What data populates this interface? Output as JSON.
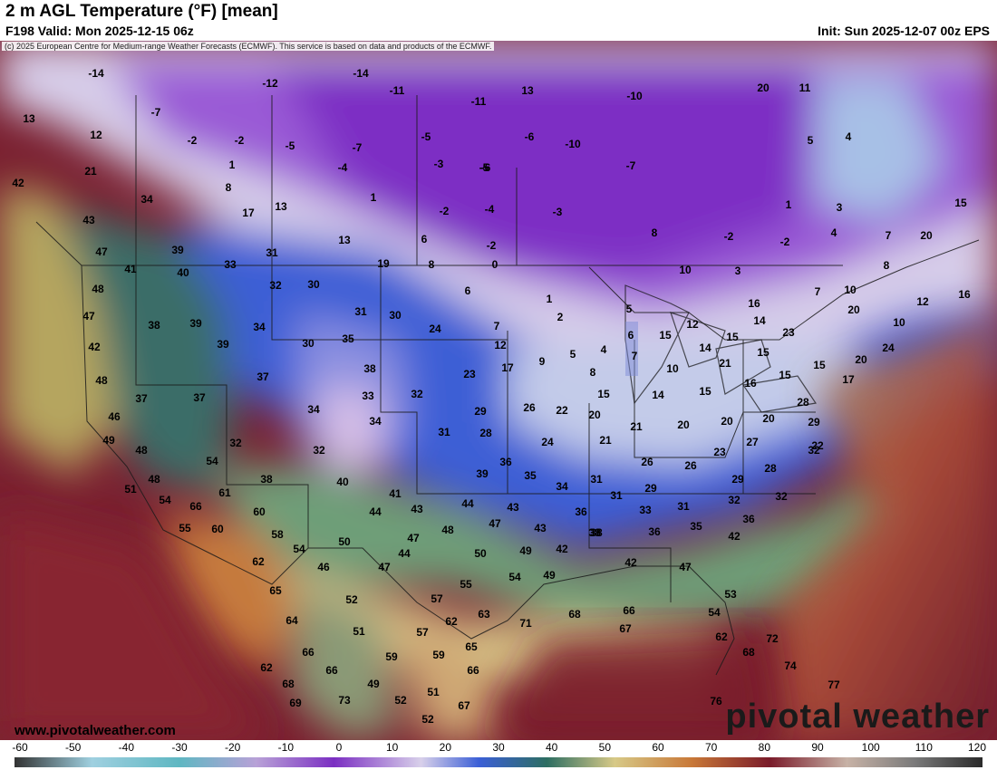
{
  "header": {
    "title": "2 m AGL Temperature (°F) [mean]",
    "valid": "F198 Valid: Mon 2025-12-15 06z",
    "init": "Init: Sun 2025-12-07 00z EPS"
  },
  "copyright": "(c) 2025 European Centre for Medium-range Weather Forecasts (ECMWF). This service is based on data and products of the ECMWF.",
  "website": "www.pivotalweather.com",
  "brand": "pivotal weather",
  "colors": {
    "frigid": "#7a2ab5",
    "cold": "#3f5fd6",
    "mild": "#2f6f62",
    "warm": "#c97a38",
    "hot": "#7a1c28"
  },
  "scale": {
    "ticks": [
      "-60",
      "-50",
      "-40",
      "-30",
      "-20",
      "-10",
      "0",
      "10",
      "20",
      "30",
      "40",
      "50",
      "60",
      "70",
      "80",
      "90",
      "100",
      "110",
      "120"
    ]
  },
  "map_values": [
    {
      "t": "-14"
    },
    {
      "t": "-12"
    },
    {
      "t": "-14"
    },
    {
      "t": "-11"
    },
    {
      "t": "13"
    },
    {
      "t": "-11"
    },
    {
      "t": "-10"
    },
    {
      "t": "20"
    },
    {
      "t": "11"
    },
    {
      "t": "13"
    },
    {
      "t": "-7"
    },
    {
      "t": "12"
    },
    {
      "t": "-2"
    },
    {
      "t": "-2"
    },
    {
      "t": "-5"
    },
    {
      "t": "-7"
    },
    {
      "t": "-5"
    },
    {
      "t": "-6"
    },
    {
      "t": "-10"
    },
    {
      "t": "-5"
    },
    {
      "t": "5"
    },
    {
      "t": "4"
    },
    {
      "t": "21"
    },
    {
      "t": "1"
    },
    {
      "t": "-4"
    },
    {
      "t": "-7"
    },
    {
      "t": "-3"
    },
    {
      "t": "-6"
    },
    {
      "t": "42"
    },
    {
      "t": "8"
    },
    {
      "t": "1"
    },
    {
      "t": "-2"
    },
    {
      "t": "-4"
    },
    {
      "t": "-3"
    },
    {
      "t": "1"
    },
    {
      "t": "3"
    },
    {
      "t": "15"
    },
    {
      "t": "34"
    },
    {
      "t": "17"
    },
    {
      "t": "13"
    },
    {
      "t": "43"
    },
    {
      "t": "-2"
    },
    {
      "t": "20"
    },
    {
      "t": "47"
    },
    {
      "t": "39"
    },
    {
      "t": "31"
    },
    {
      "t": "13"
    },
    {
      "t": "6"
    },
    {
      "t": "-2"
    },
    {
      "t": "8"
    },
    {
      "t": "-2"
    },
    {
      "t": "4"
    },
    {
      "t": "7"
    },
    {
      "t": "41"
    },
    {
      "t": "40"
    },
    {
      "t": "33"
    },
    {
      "t": "19"
    },
    {
      "t": "8"
    },
    {
      "t": "0"
    },
    {
      "t": "10"
    },
    {
      "t": "3"
    },
    {
      "t": "8"
    },
    {
      "t": "48"
    },
    {
      "t": "32"
    },
    {
      "t": "30"
    },
    {
      "t": "6"
    },
    {
      "t": "1"
    },
    {
      "t": "16"
    },
    {
      "t": "7"
    },
    {
      "t": "10"
    },
    {
      "t": "12"
    },
    {
      "t": "16"
    },
    {
      "t": "47"
    },
    {
      "t": "38"
    },
    {
      "t": "39"
    },
    {
      "t": "34"
    },
    {
      "t": "31"
    },
    {
      "t": "30"
    },
    {
      "t": "2"
    },
    {
      "t": "5"
    },
    {
      "t": "12"
    },
    {
      "t": "14"
    },
    {
      "t": "20"
    },
    {
      "t": "10"
    },
    {
      "t": "24"
    },
    {
      "t": "7"
    },
    {
      "t": "6"
    },
    {
      "t": "15"
    },
    {
      "t": "23"
    },
    {
      "t": "42"
    },
    {
      "t": "30"
    },
    {
      "t": "35"
    },
    {
      "t": "39"
    },
    {
      "t": "12"
    },
    {
      "t": "4"
    },
    {
      "t": "14"
    },
    {
      "t": "15"
    },
    {
      "t": "15"
    },
    {
      "t": "48"
    },
    {
      "t": "37"
    },
    {
      "t": "38"
    },
    {
      "t": "23"
    },
    {
      "t": "17"
    },
    {
      "t": "9"
    },
    {
      "t": "5"
    },
    {
      "t": "8"
    },
    {
      "t": "7"
    },
    {
      "t": "10"
    },
    {
      "t": "21"
    },
    {
      "t": "16"
    },
    {
      "t": "15"
    },
    {
      "t": "15"
    },
    {
      "t": "24"
    },
    {
      "t": "20"
    },
    {
      "t": "37"
    },
    {
      "t": "37"
    },
    {
      "t": "33"
    },
    {
      "t": "32"
    },
    {
      "t": "15"
    },
    {
      "t": "14"
    },
    {
      "t": "15"
    },
    {
      "t": "17"
    },
    {
      "t": "46"
    },
    {
      "t": "34"
    },
    {
      "t": "34"
    },
    {
      "t": "29"
    },
    {
      "t": "26"
    },
    {
      "t": "22"
    },
    {
      "t": "20"
    },
    {
      "t": "21"
    },
    {
      "t": "20"
    },
    {
      "t": "20"
    },
    {
      "t": "20"
    },
    {
      "t": "28"
    },
    {
      "t": "29"
    },
    {
      "t": "49"
    },
    {
      "t": "48"
    },
    {
      "t": "32"
    },
    {
      "t": "31"
    },
    {
      "t": "28"
    },
    {
      "t": "24"
    },
    {
      "t": "21"
    },
    {
      "t": "27"
    },
    {
      "t": "22"
    },
    {
      "t": "48"
    },
    {
      "t": "32"
    },
    {
      "t": "23"
    },
    {
      "t": "32"
    },
    {
      "t": "54"
    },
    {
      "t": "38"
    },
    {
      "t": "40"
    },
    {
      "t": "39"
    },
    {
      "t": "36"
    },
    {
      "t": "26"
    },
    {
      "t": "26"
    },
    {
      "t": "28"
    },
    {
      "t": "51"
    },
    {
      "t": "61"
    },
    {
      "t": "41"
    },
    {
      "t": "35"
    },
    {
      "t": "31"
    },
    {
      "t": "29"
    },
    {
      "t": "29"
    },
    {
      "t": "54"
    },
    {
      "t": "66"
    },
    {
      "t": "60"
    },
    {
      "t": "44"
    },
    {
      "t": "43"
    },
    {
      "t": "44"
    },
    {
      "t": "43"
    },
    {
      "t": "34"
    },
    {
      "t": "31"
    },
    {
      "t": "33"
    },
    {
      "t": "31"
    },
    {
      "t": "32"
    },
    {
      "t": "32"
    },
    {
      "t": "55"
    },
    {
      "t": "60"
    },
    {
      "t": "58"
    },
    {
      "t": "47"
    },
    {
      "t": "48"
    },
    {
      "t": "47"
    },
    {
      "t": "43"
    },
    {
      "t": "36"
    },
    {
      "t": "38"
    },
    {
      "t": "36"
    },
    {
      "t": "35"
    },
    {
      "t": "36"
    },
    {
      "t": "54"
    },
    {
      "t": "50"
    },
    {
      "t": "44"
    },
    {
      "t": "38"
    },
    {
      "t": "42"
    },
    {
      "t": "62"
    },
    {
      "t": "46"
    },
    {
      "t": "47"
    },
    {
      "t": "50"
    },
    {
      "t": "49"
    },
    {
      "t": "42"
    },
    {
      "t": "42"
    },
    {
      "t": "47"
    },
    {
      "t": "54"
    },
    {
      "t": "49"
    },
    {
      "t": "65"
    },
    {
      "t": "52"
    },
    {
      "t": "55"
    },
    {
      "t": "53"
    },
    {
      "t": "64"
    },
    {
      "t": "57"
    },
    {
      "t": "71"
    },
    {
      "t": "68"
    },
    {
      "t": "66"
    },
    {
      "t": "54"
    },
    {
      "t": "51"
    },
    {
      "t": "57"
    },
    {
      "t": "62"
    },
    {
      "t": "63"
    },
    {
      "t": "67"
    },
    {
      "t": "66"
    },
    {
      "t": "59"
    },
    {
      "t": "65"
    },
    {
      "t": "62"
    },
    {
      "t": "72"
    },
    {
      "t": "62"
    },
    {
      "t": "66"
    },
    {
      "t": "59"
    },
    {
      "t": "66"
    },
    {
      "t": "68"
    },
    {
      "t": "68"
    },
    {
      "t": "49"
    },
    {
      "t": "74"
    },
    {
      "t": "69"
    },
    {
      "t": "73"
    },
    {
      "t": "52"
    },
    {
      "t": "51"
    },
    {
      "t": "67"
    },
    {
      "t": "77"
    },
    {
      "t": "76"
    },
    {
      "t": "52"
    }
  ]
}
